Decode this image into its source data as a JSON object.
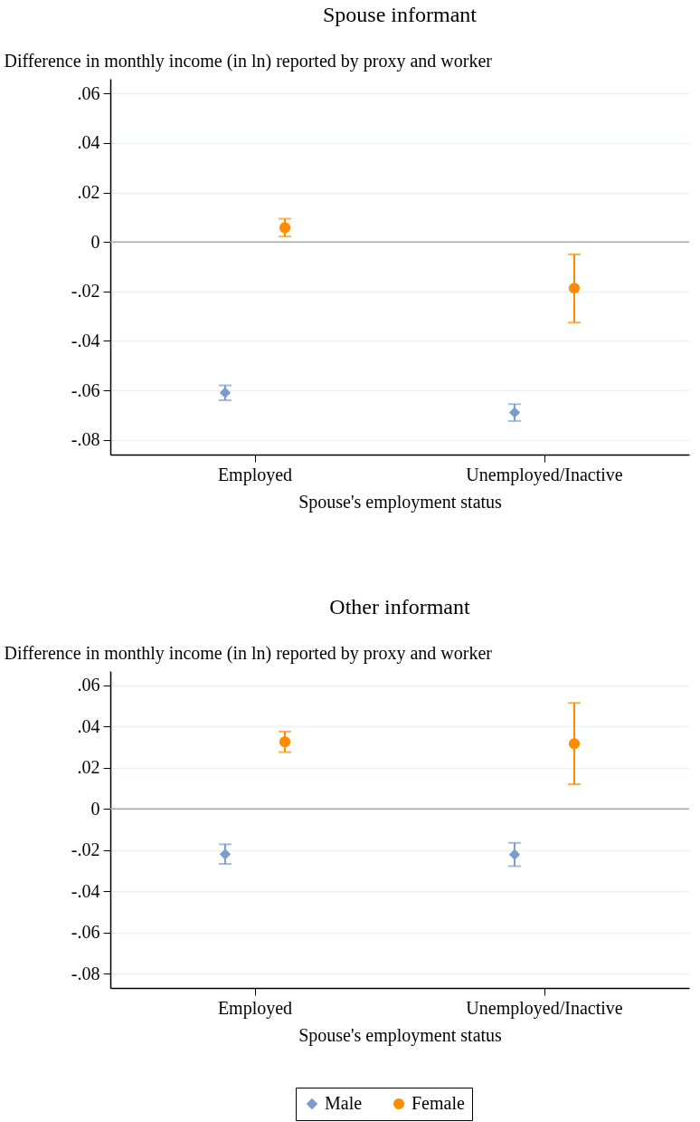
{
  "chart_data": [
    {
      "type": "scatter",
      "title": "Spouse informant",
      "ylabel": "Difference in monthly income (in ln) reported by proxy and worker",
      "xlabel": "Spouse's employment status",
      "categories": [
        "Employed",
        "Unemployed/Inactive"
      ],
      "series": [
        {
          "color": "#7a9ccc",
          "marker": "diamond",
          "values": [
            -0.061,
            -0.069
          ],
          "errors": [
            [
              -0.064,
              -0.058
            ],
            [
              -0.0724,
              -0.0656
            ]
          ]
        },
        {
          "color": "#ff8c00",
          "marker": "circle",
          "values": [
            0.0058,
            -0.0187
          ],
          "errors": [
            [
              0.0022,
              0.0094
            ],
            [
              -0.0326,
              -0.005
            ]
          ]
        }
      ],
      "ylim": [
        -0.086,
        0.066
      ],
      "yticks": [
        {
          "value": -0.08,
          "label": "-.08"
        },
        {
          "value": -0.06,
          "label": "-.06"
        },
        {
          "value": -0.04,
          "label": "-.04"
        },
        {
          "value": -0.02,
          "label": "-.02"
        },
        {
          "value": 0,
          "label": "0"
        },
        {
          "value": 0.02,
          "label": ".02"
        },
        {
          "value": 0.04,
          "label": ".04"
        },
        {
          "value": 0.06,
          "label": ".06"
        }
      ],
      "ref_lines": [
        {
          "axis": "y",
          "value": 0,
          "color": "#a8a8a8"
        }
      ],
      "grid": "y"
    },
    {
      "type": "scatter",
      "title": "Other informant",
      "ylabel": "Difference in monthly income (in ln) reported by proxy and worker",
      "xlabel": "Spouse's employment status",
      "categories": [
        "Employed",
        "Unemployed/Inactive"
      ],
      "series": [
        {
          "name": "Male",
          "color": "#7a9ccc",
          "marker": "diamond",
          "values": [
            -0.022,
            -0.0222
          ],
          "errors": [
            [
              -0.0267,
              -0.0172
            ],
            [
              -0.0278,
              -0.0165
            ]
          ]
        },
        {
          "name": "Female",
          "color": "#ff8c00",
          "marker": "circle",
          "values": [
            0.0326,
            0.0317
          ],
          "errors": [
            [
              0.0276,
              0.0376
            ],
            [
              0.012,
              0.0515
            ]
          ]
        }
      ],
      "ylim": [
        -0.087,
        0.067
      ],
      "yticks": [
        {
          "value": -0.08,
          "label": "-.08"
        },
        {
          "value": -0.06,
          "label": "-.06"
        },
        {
          "value": -0.04,
          "label": "-.04"
        },
        {
          "value": -0.02,
          "label": "-.02"
        },
        {
          "value": 0,
          "label": "0"
        },
        {
          "value": 0.02,
          "label": ".02"
        },
        {
          "value": 0.04,
          "label": ".04"
        },
        {
          "value": 0.06,
          "label": ".06"
        }
      ],
      "ref_lines": [
        {
          "axis": "y",
          "value": 0,
          "color": "#a8a8a8"
        }
      ],
      "grid": "y",
      "legend": "bottom"
    }
  ]
}
